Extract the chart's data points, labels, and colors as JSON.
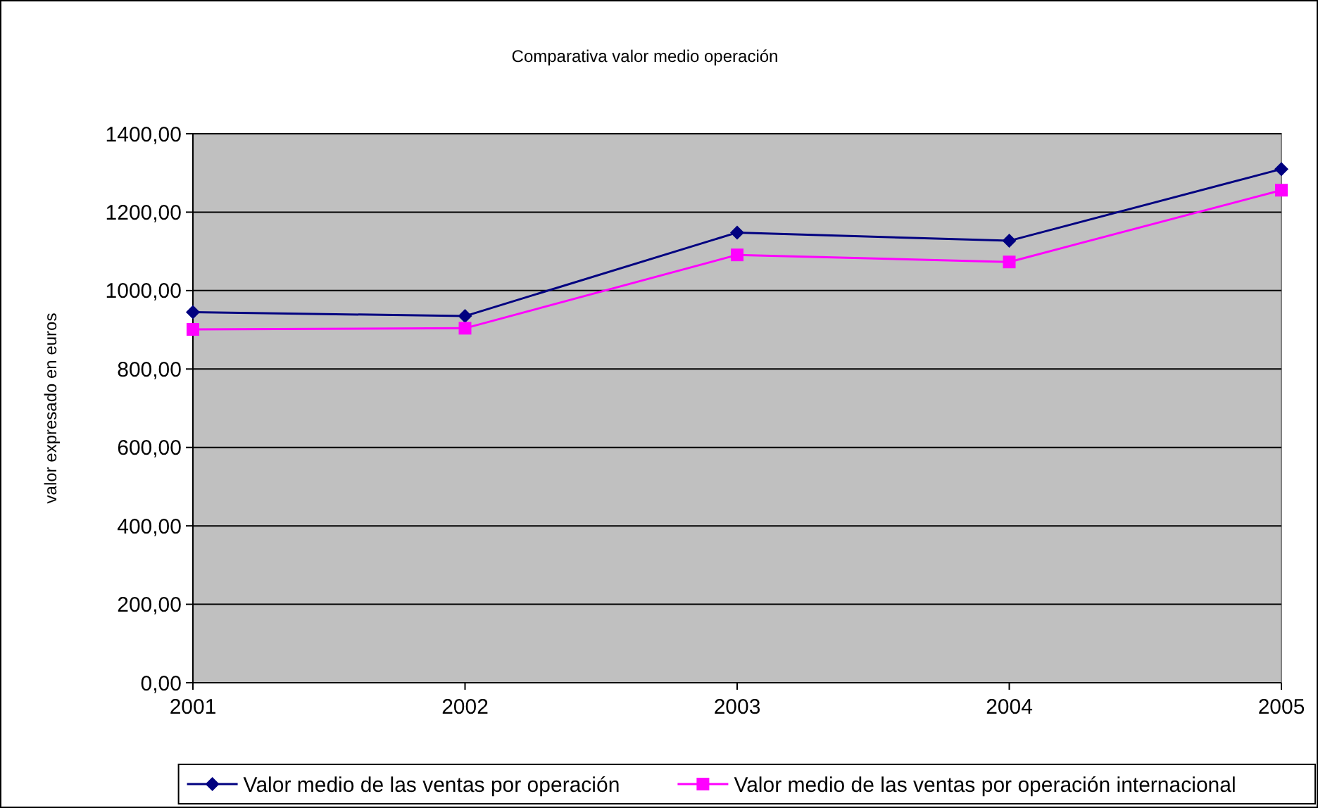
{
  "chart_data": {
    "type": "line",
    "title": "Comparativa valor medio operación",
    "ylabel": "valor expresado en euros",
    "categories": [
      "2001",
      "2002",
      "2003",
      "2004",
      "2005"
    ],
    "series": [
      {
        "name": "Valor medio de las ventas por operación",
        "color": "#000080",
        "marker": "diamond",
        "values": [
          945,
          935,
          1148,
          1127,
          1310
        ]
      },
      {
        "name": "Valor medio de las ventas por operación internacional",
        "color": "#ff00ff",
        "marker": "square",
        "values": [
          901,
          904,
          1091,
          1073,
          1256
        ]
      }
    ],
    "ylim": [
      0,
      1400
    ],
    "yticks": [
      {
        "value": 0,
        "label": "0,00"
      },
      {
        "value": 200,
        "label": "200,00"
      },
      {
        "value": 400,
        "label": "400,00"
      },
      {
        "value": 600,
        "label": "600,00"
      },
      {
        "value": 800,
        "label": "800,00"
      },
      {
        "value": 1000,
        "label": "1000,00"
      },
      {
        "value": 1200,
        "label": "1200,00"
      },
      {
        "value": 1400,
        "label": "1400,00"
      }
    ],
    "grid": "y",
    "legend": "bottom"
  }
}
